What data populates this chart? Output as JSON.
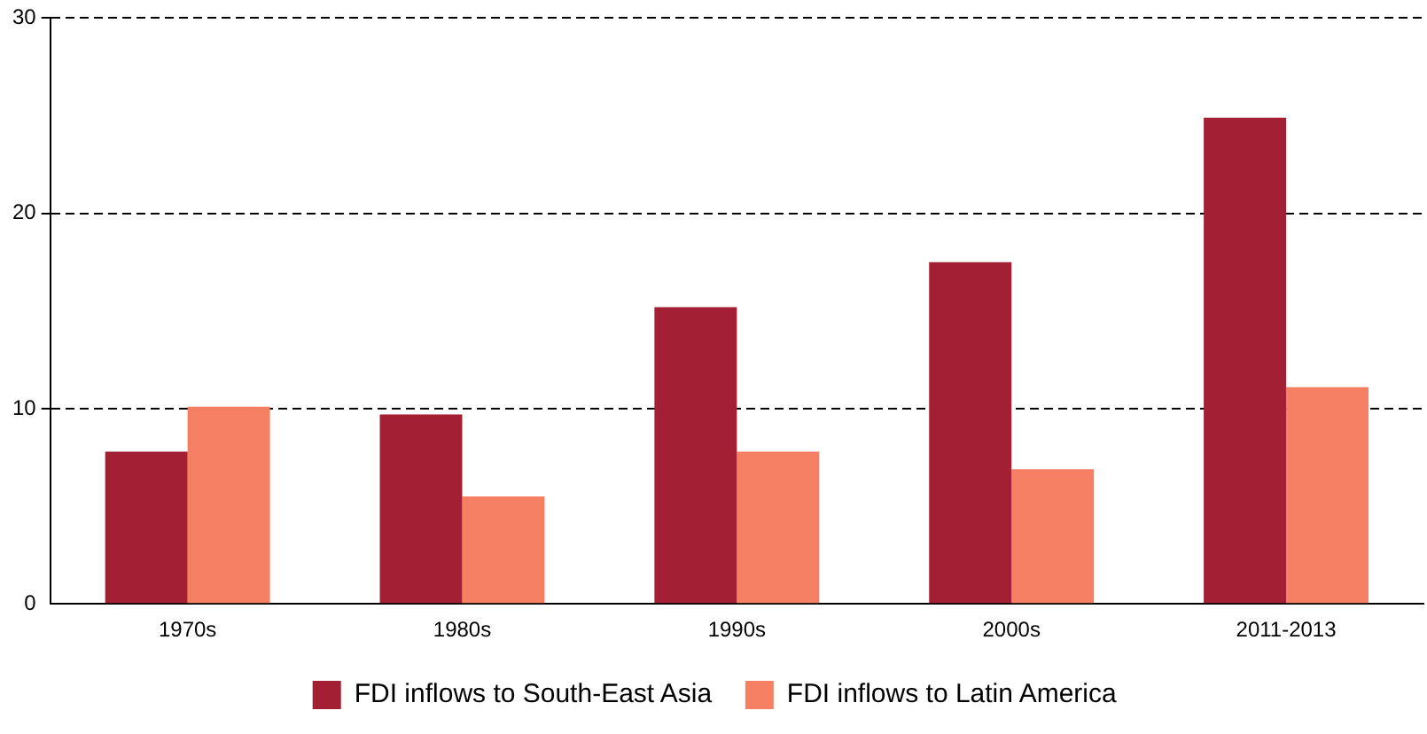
{
  "chart_data": {
    "type": "bar",
    "categories": [
      "1970s",
      "1980s",
      "1990s",
      "2000s",
      "2011-2013"
    ],
    "series": [
      {
        "name": "FDI inflows to South-East Asia",
        "color": "#a31f34",
        "values": [
          7.8,
          9.7,
          15.2,
          17.5,
          24.9
        ]
      },
      {
        "name": "FDI inflows to Latin America",
        "color": "#f47f63",
        "values": [
          10.1,
          5.5,
          7.8,
          6.9,
          11.1
        ]
      }
    ],
    "ylim": [
      0,
      30
    ],
    "yticks": [
      0,
      10,
      20,
      30
    ],
    "grid": "y",
    "legend": "bottom"
  }
}
